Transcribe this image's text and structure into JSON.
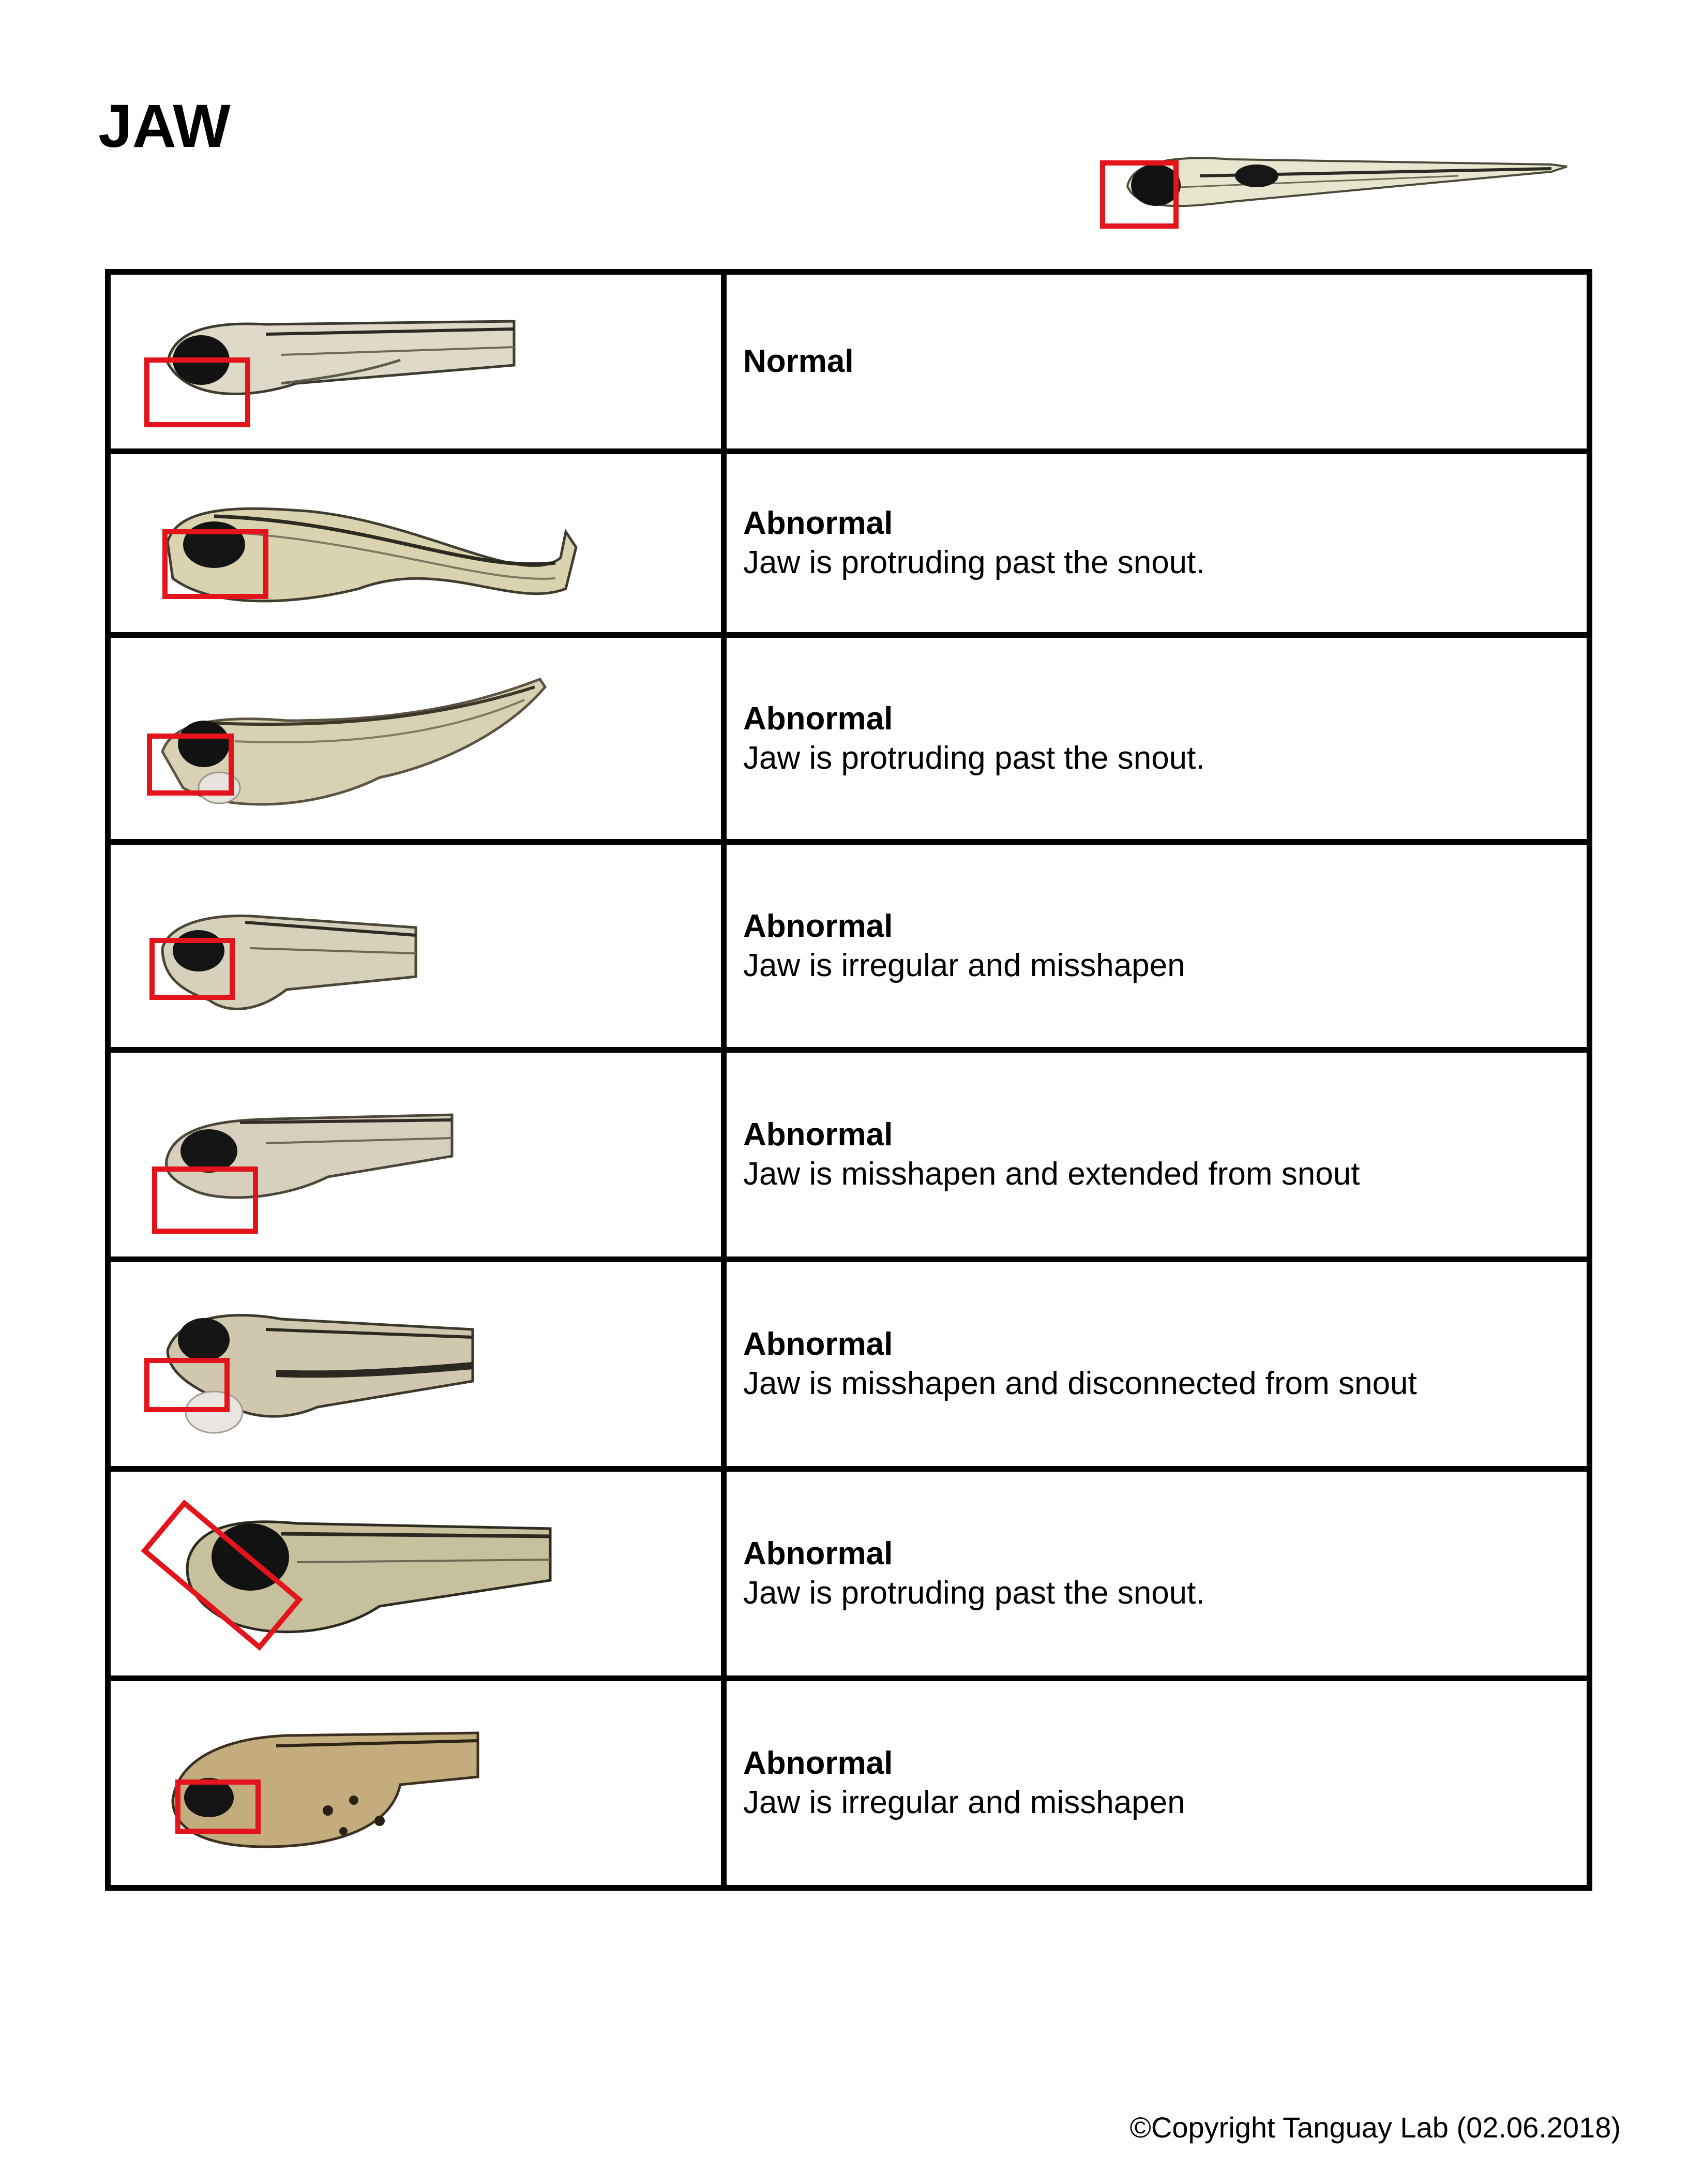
{
  "page": {
    "title": "JAW",
    "copyright": "©Copyright Tanguay Lab (02.06.2018)"
  },
  "reference_image": {
    "icon": "zebrafish-larva-full-body",
    "highlight": "jaw-region-box",
    "highlight_color": "#e3141b"
  },
  "rows": [
    {
      "grade": "Normal",
      "description": "",
      "icon": "zebrafish-larva-normal-jaw"
    },
    {
      "grade": "Abnormal",
      "description": "Jaw is protruding past the snout.",
      "icon": "zebrafish-larva-protruding-jaw"
    },
    {
      "grade": "Abnormal",
      "description": "Jaw is protruding past the snout.",
      "icon": "zebrafish-larva-protruding-jaw"
    },
    {
      "grade": "Abnormal",
      "description": "Jaw is irregular and misshapen",
      "icon": "zebrafish-larva-misshapen-jaw"
    },
    {
      "grade": "Abnormal",
      "description": "Jaw is misshapen and extended from snout",
      "icon": "zebrafish-larva-extended-jaw"
    },
    {
      "grade": "Abnormal",
      "description": "Jaw is misshapen and disconnected from snout",
      "icon": "zebrafish-larva-disconnected-jaw"
    },
    {
      "grade": "Abnormal",
      "description": "Jaw is protruding past the snout.",
      "icon": "zebrafish-larva-protruding-jaw"
    },
    {
      "grade": "Abnormal",
      "description": "Jaw is irregular and misshapen",
      "icon": "zebrafish-larva-misshapen-jaw"
    }
  ]
}
